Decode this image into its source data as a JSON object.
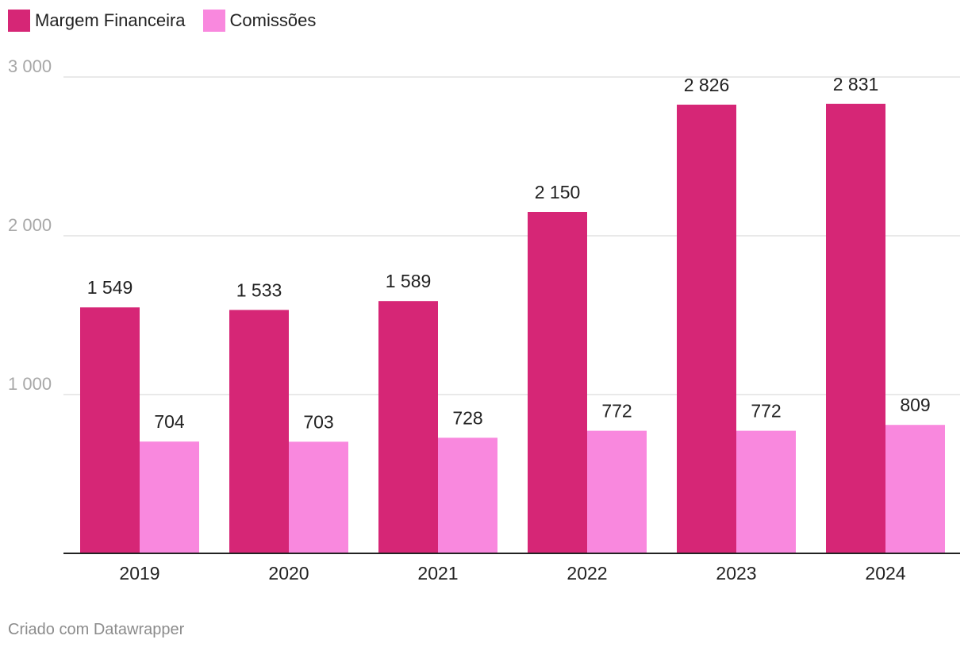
{
  "chart_data": {
    "type": "bar",
    "categories": [
      "2019",
      "2020",
      "2021",
      "2022",
      "2023",
      "2024"
    ],
    "series": [
      {
        "name": "Margem Financeira",
        "values": [
          1549,
          1533,
          1589,
          2150,
          2826,
          2831
        ],
        "labels": [
          "1 549",
          "1 533",
          "1 589",
          "2 150",
          "2 826",
          "2 831"
        ]
      },
      {
        "name": "Comissões",
        "values": [
          704,
          703,
          728,
          772,
          772,
          809
        ],
        "labels": [
          "704",
          "703",
          "728",
          "772",
          "772",
          "809"
        ]
      }
    ],
    "yticks": [
      1000,
      2000,
      3000
    ],
    "ytick_labels": [
      "1 000",
      "2 000",
      "3 000"
    ],
    "ylim": [
      0,
      3000
    ],
    "grid": true,
    "legend": "top-left",
    "title": "",
    "xlabel": "",
    "ylabel": ""
  },
  "colors": {
    "series_0": "#d62676",
    "series_1": "#f988de",
    "grid": "#e2e2e2",
    "axis": "#222222",
    "tick_label": "#a8a8a8"
  },
  "legend": {
    "item_0": "Margem Financeira",
    "item_1": "Comissões"
  },
  "footer": {
    "credit": "Criado com Datawrapper"
  }
}
